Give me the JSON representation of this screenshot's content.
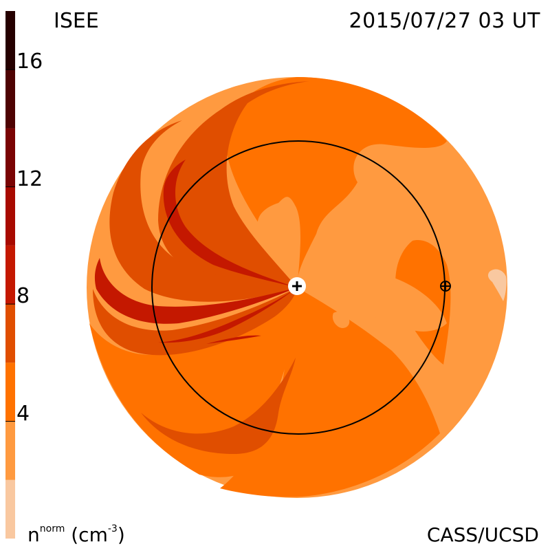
{
  "header": {
    "title": "ISEE",
    "timestamp": "2015/07/27 03 UT"
  },
  "footer": {
    "credit": "CASS/UCSD"
  },
  "colorbar": {
    "quantity": "n",
    "superscript": "norm",
    "unit_base": "(cm",
    "unit_exp": "-3",
    "unit_close": ")",
    "tick_labels": [
      "16",
      "12",
      "8",
      "4"
    ],
    "tick_values": [
      16,
      12,
      8,
      4
    ],
    "range": [
      0,
      18
    ],
    "bands": [
      {
        "from": 0,
        "to": 2,
        "color": "#f9c8a0"
      },
      {
        "from": 2,
        "to": 4,
        "color": "#ff9a40"
      },
      {
        "from": 4,
        "to": 6,
        "color": "#ff7200"
      },
      {
        "from": 6,
        "to": 8,
        "color": "#e04e00"
      },
      {
        "from": 8,
        "to": 10,
        "color": "#c41800"
      },
      {
        "from": 10,
        "to": 12,
        "color": "#a80a00"
      },
      {
        "from": 12,
        "to": 14,
        "color": "#7a0404"
      },
      {
        "from": 14,
        "to": 16,
        "color": "#4e0202"
      },
      {
        "from": 16,
        "to": 18,
        "color": "#250000"
      }
    ]
  },
  "colors": {
    "disk_base": "#ff9a40",
    "mid": "#ff7200",
    "high": "#e04e00",
    "higher": "#c41800",
    "light": "#f9c8a0",
    "orbit_line": "#000000"
  },
  "markers": {
    "sun_symbol": "+",
    "earth_symbol": "⊕"
  }
}
